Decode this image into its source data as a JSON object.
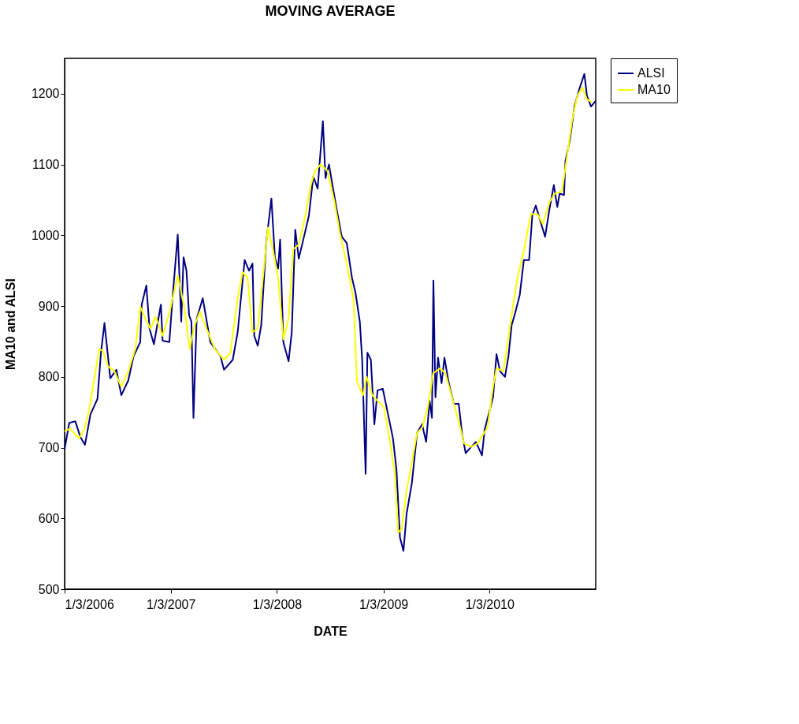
{
  "chart_data": {
    "type": "line",
    "title": "MOVING AVERAGE",
    "xlabel": "DATE",
    "ylabel": "MA10 and ALSI",
    "xlim": [
      "2006-01-03",
      "2011-01-03"
    ],
    "xticks": [
      {
        "value": "2006-01-03",
        "label": "1/3/2006"
      },
      {
        "value": "2007-01-03",
        "label": "1/3/2007"
      },
      {
        "value": "2008-01-03",
        "label": "1/3/2008"
      },
      {
        "value": "2009-01-03",
        "label": "1/3/2009"
      },
      {
        "value": "2010-01-03",
        "label": "1/3/2010"
      }
    ],
    "ylim": [
      500,
      1250
    ],
    "yticks": [
      500,
      600,
      700,
      800,
      900,
      1000,
      1100,
      1200
    ],
    "grid": false,
    "legend": "right",
    "marker": "none",
    "line_style": "solid",
    "series": [
      {
        "name": "ALSI",
        "color": "#000080",
        "x": [
          "2006-01-03",
          "2006-01-19",
          "2006-02-09",
          "2006-02-26",
          "2006-03-14",
          "2006-04-02",
          "2006-04-26",
          "2006-05-08",
          "2006-05-20",
          "2006-06-09",
          "2006-06-30",
          "2006-07-17",
          "2006-08-10",
          "2006-08-28",
          "2006-09-20",
          "2006-09-25",
          "2006-10-11",
          "2006-10-22",
          "2006-11-06",
          "2006-11-30",
          "2006-12-06",
          "2006-12-29",
          "2007-01-10",
          "2007-01-27",
          "2007-02-08",
          "2007-02-16",
          "2007-02-26",
          "2007-03-07",
          "2007-03-15",
          "2007-03-22",
          "2007-04-02",
          "2007-04-23",
          "2007-05-19",
          "2007-06-23",
          "2007-07-05",
          "2007-08-04",
          "2007-08-21",
          "2007-09-14",
          "2007-09-29",
          "2007-10-11",
          "2007-10-17",
          "2007-10-29",
          "2007-11-10",
          "2007-11-27",
          "2007-12-15",
          "2007-12-27",
          "2008-01-07",
          "2008-01-14",
          "2008-01-25",
          "2008-02-12",
          "2008-02-23",
          "2008-03-06",
          "2008-03-18",
          "2008-04-05",
          "2008-04-22",
          "2008-05-07",
          "2008-05-22",
          "2008-06-09",
          "2008-06-18",
          "2008-06-30",
          "2008-07-14",
          "2008-07-28",
          "2008-08-13",
          "2008-08-30",
          "2008-09-17",
          "2008-09-29",
          "2008-10-14",
          "2008-10-22",
          "2008-11-03",
          "2008-11-09",
          "2008-11-21",
          "2008-12-03",
          "2008-12-14",
          "2009-01-01",
          "2009-01-19",
          "2009-02-05",
          "2009-02-17",
          "2009-03-01",
          "2009-03-13",
          "2009-03-24",
          "2009-04-11",
          "2009-04-29",
          "2009-05-16",
          "2009-05-30",
          "2009-06-11",
          "2009-06-19",
          "2009-06-24",
          "2009-07-01",
          "2009-07-10",
          "2009-07-22",
          "2009-08-01",
          "2009-08-15",
          "2009-09-02",
          "2009-09-19",
          "2009-10-01",
          "2009-10-13",
          "2009-10-25",
          "2009-11-17",
          "2009-12-08",
          "2009-12-17",
          "2010-01-15",
          "2010-01-27",
          "2010-02-08",
          "2010-02-25",
          "2010-03-09",
          "2010-03-20",
          "2010-04-01",
          "2010-04-17",
          "2010-05-01",
          "2010-05-19",
          "2010-05-30",
          "2010-06-11",
          "2010-06-26",
          "2010-07-13",
          "2010-07-28",
          "2010-08-12",
          "2010-08-24",
          "2010-09-01",
          "2010-09-16",
          "2010-09-21",
          "2010-10-06",
          "2010-10-22",
          "2010-11-08",
          "2010-11-25",
          "2010-12-04",
          "2010-12-18",
          "2011-01-03"
        ],
        "values": [
          698,
          735,
          737,
          715,
          704,
          747,
          769,
          834,
          876,
          798,
          810,
          774,
          795,
          829,
          849,
          902,
          929,
          868,
          846,
          902,
          851,
          849,
          916,
          1001,
          878,
          969,
          950,
          887,
          878,
          742,
          882,
          911,
          849,
          829,
          810,
          824,
          863,
          965,
          950,
          960,
          858,
          844,
          873,
          989,
          1052,
          969,
          953,
          994,
          849,
          822,
          863,
          1008,
          967,
          998,
          1028,
          1083,
          1066,
          1161,
          1081,
          1100,
          1066,
          1033,
          998,
          989,
          940,
          919,
          878,
          824,
          663,
          834,
          824,
          733,
          781,
          783,
          747,
          713,
          669,
          573,
          554,
          607,
          650,
          721,
          733,
          708,
          766,
          742,
          936,
          771,
          827,
          791,
          827,
          793,
          762,
          762,
          718,
          692,
          698,
          708,
          689,
          725,
          771,
          832,
          808,
          800,
          829,
          873,
          890,
          916,
          965,
          965,
          1028,
          1042,
          1021,
          998,
          1037,
          1071,
          1040,
          1059,
          1057,
          1105,
          1134,
          1182,
          1207,
          1228,
          1197,
          1182,
          1190
        ]
      },
      {
        "name": "MA10",
        "color": "#ffff00",
        "x": [
          "2006-01-03",
          "2006-01-22",
          "2006-02-21",
          "2006-03-11",
          "2006-03-28",
          "2006-04-14",
          "2006-05-02",
          "2006-05-14",
          "2006-06-01",
          "2006-06-23",
          "2006-07-17",
          "2006-08-10",
          "2006-09-03",
          "2006-09-20",
          "2006-10-08",
          "2006-10-25",
          "2006-11-12",
          "2006-12-06",
          "2006-12-29",
          "2007-01-27",
          "2007-02-19",
          "2007-03-09",
          "2007-03-26",
          "2007-04-13",
          "2007-05-06",
          "2007-06-04",
          "2007-07-05",
          "2007-07-27",
          "2007-08-21",
          "2007-09-07",
          "2007-09-24",
          "2007-10-11",
          "2007-10-29",
          "2007-11-15",
          "2007-12-03",
          "2007-12-20",
          "2008-01-07",
          "2008-01-25",
          "2008-02-12",
          "2008-02-28",
          "2008-03-18",
          "2008-04-10",
          "2008-04-28",
          "2008-05-14",
          "2008-06-01",
          "2008-06-25",
          "2008-07-19",
          "2008-08-06",
          "2008-08-30",
          "2008-09-22",
          "2008-10-04",
          "2008-10-25",
          "2008-11-06",
          "2008-11-26",
          "2008-12-14",
          "2009-01-05",
          "2009-01-24",
          "2009-02-11",
          "2009-02-23",
          "2009-03-07",
          "2009-03-24",
          "2009-04-11",
          "2009-04-29",
          "2009-05-16",
          "2009-06-05",
          "2009-06-23",
          "2009-07-17",
          "2009-08-04",
          "2009-08-27",
          "2009-09-19",
          "2009-10-07",
          "2009-10-31",
          "2009-11-23",
          "2009-12-11",
          "2009-12-27",
          "2010-01-15",
          "2010-01-27",
          "2010-02-20",
          "2010-03-15",
          "2010-04-07",
          "2010-05-01",
          "2010-05-25",
          "2010-06-17",
          "2010-07-05",
          "2010-07-28",
          "2010-08-16",
          "2010-09-09",
          "2010-09-26",
          "2010-10-14",
          "2010-11-01",
          "2010-11-18",
          "2010-12-04",
          "2010-12-22"
        ],
        "values": [
          723,
          727,
          713,
          725,
          752,
          795,
          839,
          837,
          815,
          808,
          786,
          808,
          839,
          899,
          882,
          868,
          885,
          858,
          890,
          943,
          897,
          839,
          873,
          892,
          868,
          839,
          824,
          834,
          911,
          948,
          940,
          863,
          868,
          936,
          1011,
          980,
          940,
          853,
          882,
          980,
          987,
          1028,
          1071,
          1091,
          1100,
          1091,
          1047,
          1004,
          960,
          911,
          793,
          774,
          800,
          774,
          766,
          757,
          713,
          665,
          580,
          585,
          640,
          679,
          721,
          728,
          757,
          805,
          812,
          805,
          771,
          737,
          706,
          701,
          706,
          718,
          728,
          786,
          812,
          808,
          873,
          936,
          978,
          1030,
          1030,
          1016,
          1047,
          1059,
          1062,
          1110,
          1163,
          1197,
          1209,
          1192,
          1188
        ]
      }
    ]
  }
}
